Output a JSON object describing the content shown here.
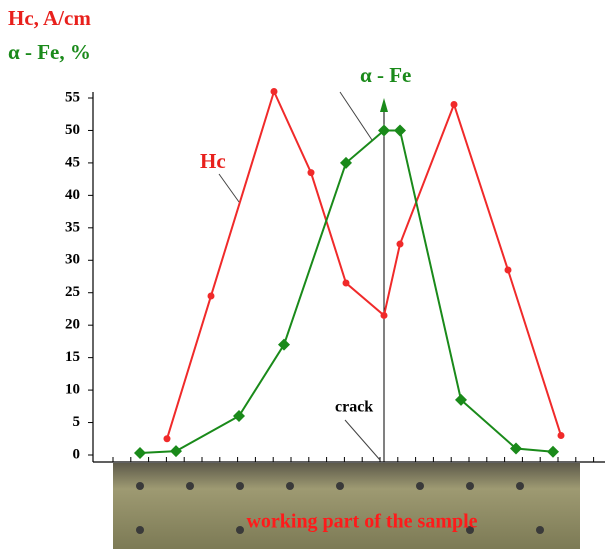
{
  "chart_data": {
    "type": "line",
    "y_axis_labels": [
      {
        "text": "Hc, A/cm",
        "color": "#e8201c"
      },
      {
        "text": "α - Fe, %",
        "color": "#1a8a1a"
      }
    ],
    "annotations": [
      {
        "text": "Hc",
        "color": "#e8201c"
      },
      {
        "text": "α - Fe",
        "color": "#1a8a1a"
      },
      {
        "text": "crack",
        "color": "#000000"
      },
      {
        "text": "working part of the sample",
        "color": "#ff1a1a"
      }
    ],
    "xlim": [
      -271,
      221
    ],
    "ylim": [
      0,
      55
    ],
    "yticks": [
      0,
      5,
      10,
      15,
      20,
      25,
      30,
      35,
      40,
      45,
      50,
      55
    ],
    "series": [
      {
        "name": "Hc",
        "color": "#f02a2a",
        "marker": "circle",
        "x": [
          -217,
          -173,
          -110,
          -73,
          -38,
          0,
          16,
          70,
          124,
          177
        ],
        "values": [
          2.5,
          24.5,
          56,
          43.5,
          26.5,
          21.5,
          32.5,
          54,
          28.5,
          3
        ]
      },
      {
        "name": "α - Fe",
        "color": "#1a8a1a",
        "marker": "diamond",
        "x": [
          -244,
          -208,
          -145,
          -100,
          -38,
          0,
          16,
          77,
          132,
          169
        ],
        "values": [
          0.3,
          0.6,
          6,
          17,
          45,
          50,
          50,
          8.5,
          1,
          0.5
        ]
      }
    ]
  }
}
